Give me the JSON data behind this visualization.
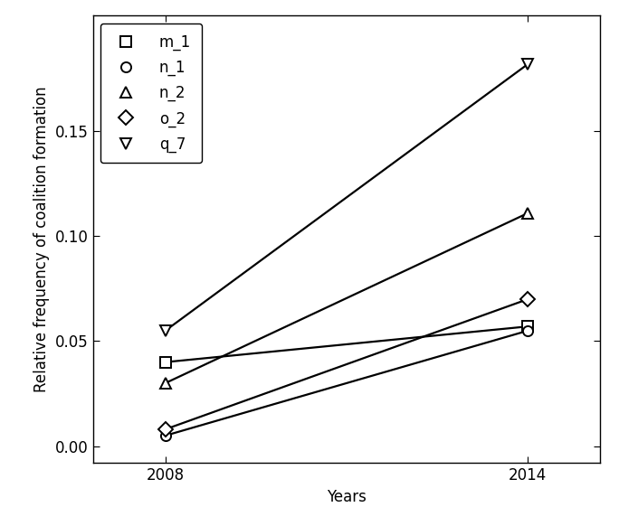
{
  "series": [
    {
      "label": "m_1",
      "marker": "s",
      "x": [
        2008,
        2014
      ],
      "y": [
        0.04,
        0.057
      ]
    },
    {
      "label": "n_1",
      "marker": "o",
      "x": [
        2008,
        2014
      ],
      "y": [
        0.005,
        0.055
      ]
    },
    {
      "label": "n_2",
      "marker": "^",
      "x": [
        2008,
        2014
      ],
      "y": [
        0.03,
        0.111
      ]
    },
    {
      "label": "o_2",
      "marker": "D",
      "x": [
        2008,
        2014
      ],
      "y": [
        0.008,
        0.07
      ]
    },
    {
      "label": "q_7",
      "marker": "v",
      "x": [
        2008,
        2014
      ],
      "y": [
        0.055,
        0.182
      ]
    }
  ],
  "line_color": "#000000",
  "marker_facecolor": "#ffffff",
  "marker_edgecolor": "#000000",
  "marker_size": 8,
  "linewidth": 1.6,
  "xlabel": "Years",
  "ylabel": "Relative frequency of coalition formation",
  "xlim": [
    2006.8,
    2015.2
  ],
  "ylim": [
    -0.008,
    0.205
  ],
  "yticks": [
    0.0,
    0.05,
    0.1,
    0.15
  ],
  "xticks": [
    2008,
    2014
  ],
  "legend_loc": "upper left",
  "background_color": "#ffffff",
  "axes_color": "#000000",
  "font_size": 12,
  "legend_fontsize": 12
}
